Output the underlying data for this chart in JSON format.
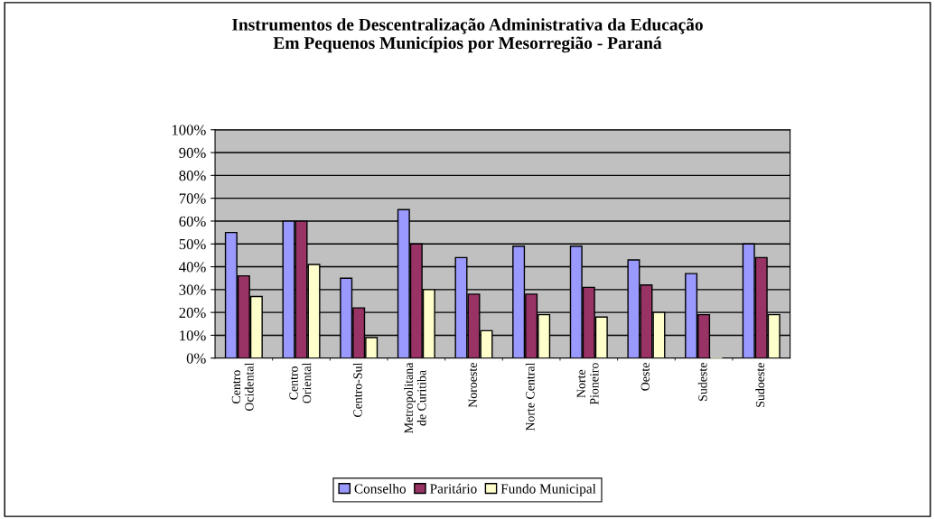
{
  "chart_data": {
    "type": "bar",
    "title": "Instrumentos de Descentralização Administrativa da Educação\nEm Pequenos Municípios por Mesorregião - Paraná",
    "categories": [
      "Centro\nOcidental",
      "Centro\nOriental",
      "Centro-Sul",
      "Metropolitana\nde Curitiba",
      "Noroeste",
      "Norte Central",
      "Norte\nPioneiro",
      "Oeste",
      "Sudeste",
      "Sudoeste"
    ],
    "series": [
      {
        "name": "Conselho",
        "color": "#9999ff",
        "values": [
          55,
          60,
          35,
          65,
          44,
          49,
          49,
          43,
          37,
          50
        ]
      },
      {
        "name": "Paritário",
        "color": "#993366",
        "values": [
          36,
          60,
          22,
          50,
          28,
          28,
          31,
          32,
          19,
          44
        ]
      },
      {
        "name": "Fundo Municipal",
        "color": "#ffffcc",
        "values": [
          27,
          41,
          9,
          30,
          12,
          19,
          18,
          20,
          0,
          19
        ]
      }
    ],
    "ylim": [
      0,
      100
    ],
    "yticks": [
      {
        "value": 0,
        "label": "0%"
      },
      {
        "value": 10,
        "label": "10%"
      },
      {
        "value": 20,
        "label": "20%"
      },
      {
        "value": 30,
        "label": "30%"
      },
      {
        "value": 40,
        "label": "40%"
      },
      {
        "value": 50,
        "label": "50%"
      },
      {
        "value": 60,
        "label": "60%"
      },
      {
        "value": 70,
        "label": "70%"
      },
      {
        "value": 80,
        "label": "80%"
      },
      {
        "value": 90,
        "label": "90%"
      },
      {
        "value": 100,
        "label": "100%"
      }
    ],
    "grid": "y",
    "legend": "bottom"
  }
}
